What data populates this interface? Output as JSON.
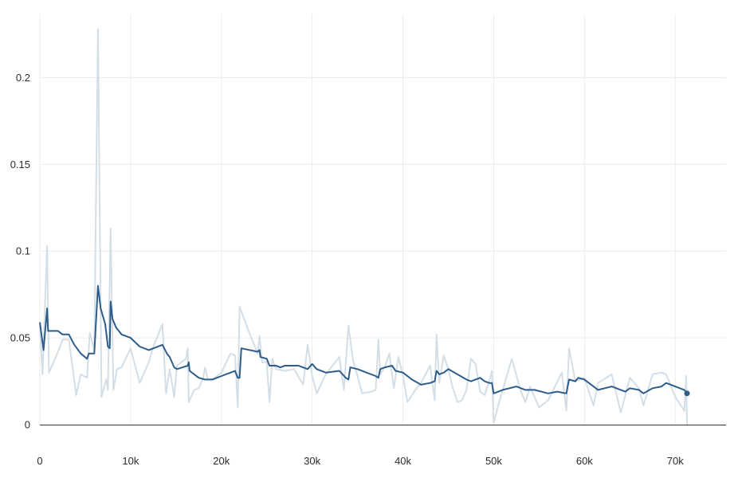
{
  "chart_data": {
    "type": "line",
    "title": "",
    "xlabel": "",
    "ylabel": "",
    "xlim": [
      0,
      75600
    ],
    "ylim": [
      0,
      0.2365
    ],
    "x_ticks": [
      0,
      10000,
      20000,
      30000,
      40000,
      50000,
      60000,
      70000
    ],
    "x_tick_labels": [
      "0",
      "10k",
      "20k",
      "30k",
      "40k",
      "50k",
      "60k",
      "70k"
    ],
    "y_ticks": [
      0,
      0.05,
      0.1,
      0.15,
      0.2
    ],
    "y_tick_labels": [
      "0",
      "0.05",
      "0.1",
      "0.15",
      "0.2"
    ],
    "grid": true,
    "legend": "none",
    "colors": {
      "raw": "#d3dee7",
      "smoothed": "#2e5d8a",
      "grid": "#ececec",
      "axis": "#333333"
    },
    "series": [
      {
        "key": "raw",
        "values": [
          [
            0,
            0.057
          ],
          [
            300,
            0.029
          ],
          [
            800,
            0.103
          ],
          [
            1000,
            0.03
          ],
          [
            2000,
            0.042
          ],
          [
            2500,
            0.049
          ],
          [
            3200,
            0.049
          ],
          [
            4000,
            0.017
          ],
          [
            4500,
            0.029
          ],
          [
            5200,
            0.027
          ],
          [
            5500,
            0.053
          ],
          [
            6000,
            0.043
          ],
          [
            6400,
            0.228
          ],
          [
            6800,
            0.016
          ],
          [
            7300,
            0.026
          ],
          [
            7500,
            0.02
          ],
          [
            7800,
            0.113
          ],
          [
            8100,
            0.02
          ],
          [
            8500,
            0.032
          ],
          [
            9000,
            0.033
          ],
          [
            10000,
            0.044
          ],
          [
            11000,
            0.024
          ],
          [
            12000,
            0.036
          ],
          [
            12500,
            0.045
          ],
          [
            13500,
            0.058
          ],
          [
            13900,
            0.018
          ],
          [
            14300,
            0.032
          ],
          [
            14800,
            0.016
          ],
          [
            15100,
            0.034
          ],
          [
            16100,
            0.038
          ],
          [
            16300,
            0.044
          ],
          [
            16400,
            0.013
          ],
          [
            17000,
            0.02
          ],
          [
            17500,
            0.021
          ],
          [
            18000,
            0.027
          ],
          [
            18200,
            0.033
          ],
          [
            18500,
            0.026
          ],
          [
            19000,
            0.026
          ],
          [
            20000,
            0.03
          ],
          [
            21000,
            0.041
          ],
          [
            21500,
            0.04
          ],
          [
            21800,
            0.01
          ],
          [
            22000,
            0.068
          ],
          [
            23000,
            0.054
          ],
          [
            24000,
            0.041
          ],
          [
            24200,
            0.051
          ],
          [
            24500,
            0.036
          ],
          [
            25000,
            0.036
          ],
          [
            25300,
            0.013
          ],
          [
            25600,
            0.038
          ],
          [
            26000,
            0.032
          ],
          [
            27000,
            0.031
          ],
          [
            28000,
            0.032
          ],
          [
            29000,
            0.023
          ],
          [
            29500,
            0.046
          ],
          [
            30000,
            0.028
          ],
          [
            30500,
            0.018
          ],
          [
            31500,
            0.029
          ],
          [
            33000,
            0.039
          ],
          [
            33500,
            0.02
          ],
          [
            34000,
            0.057
          ],
          [
            34500,
            0.037
          ],
          [
            35000,
            0.028
          ],
          [
            35500,
            0.018
          ],
          [
            36500,
            0.019
          ],
          [
            37000,
            0.02
          ],
          [
            37300,
            0.049
          ],
          [
            37500,
            0.029
          ],
          [
            38000,
            0.033
          ],
          [
            38500,
            0.041
          ],
          [
            39000,
            0.021
          ],
          [
            39500,
            0.039
          ],
          [
            40000,
            0.028
          ],
          [
            40500,
            0.013
          ],
          [
            41000,
            0.017
          ],
          [
            41500,
            0.021
          ],
          [
            42000,
            0.024
          ],
          [
            43000,
            0.034
          ],
          [
            43500,
            0.014
          ],
          [
            43700,
            0.052
          ],
          [
            44000,
            0.024
          ],
          [
            44500,
            0.04
          ],
          [
            45000,
            0.032
          ],
          [
            45500,
            0.021
          ],
          [
            46000,
            0.013
          ],
          [
            46500,
            0.014
          ],
          [
            47000,
            0.02
          ],
          [
            47500,
            0.038
          ],
          [
            48000,
            0.035
          ],
          [
            48500,
            0.019
          ],
          [
            49000,
            0.017
          ],
          [
            49500,
            0.025
          ],
          [
            49800,
            0.031
          ],
          [
            50000,
            0.001
          ],
          [
            50500,
            0.011
          ],
          [
            52000,
            0.038
          ],
          [
            53000,
            0.019
          ],
          [
            53500,
            0.013
          ],
          [
            54000,
            0.022
          ],
          [
            55000,
            0.01
          ],
          [
            56000,
            0.014
          ],
          [
            57500,
            0.03
          ],
          [
            58000,
            0.008
          ],
          [
            58300,
            0.044
          ],
          [
            59000,
            0.025
          ],
          [
            60000,
            0.027
          ],
          [
            61000,
            0.011
          ],
          [
            61500,
            0.024
          ],
          [
            63000,
            0.029
          ],
          [
            64000,
            0.007
          ],
          [
            65000,
            0.027
          ],
          [
            66000,
            0.021
          ],
          [
            66500,
            0.011
          ],
          [
            67500,
            0.029
          ],
          [
            68500,
            0.03
          ],
          [
            69000,
            0.029
          ],
          [
            70000,
            0.016
          ],
          [
            71000,
            0.008
          ],
          [
            71200,
            0.028
          ],
          [
            71300,
            0.0
          ]
        ]
      },
      {
        "key": "smoothed",
        "values": [
          [
            0,
            0.059
          ],
          [
            400,
            0.043
          ],
          [
            800,
            0.067
          ],
          [
            900,
            0.054
          ],
          [
            2000,
            0.054
          ],
          [
            2500,
            0.052
          ],
          [
            3200,
            0.052
          ],
          [
            3800,
            0.046
          ],
          [
            4500,
            0.041
          ],
          [
            5200,
            0.038
          ],
          [
            5400,
            0.041
          ],
          [
            6000,
            0.041
          ],
          [
            6400,
            0.08
          ],
          [
            6700,
            0.067
          ],
          [
            7200,
            0.058
          ],
          [
            7500,
            0.045
          ],
          [
            7700,
            0.044
          ],
          [
            7800,
            0.071
          ],
          [
            8000,
            0.061
          ],
          [
            8400,
            0.056
          ],
          [
            9000,
            0.052
          ],
          [
            10000,
            0.05
          ],
          [
            11000,
            0.045
          ],
          [
            12000,
            0.043
          ],
          [
            13500,
            0.046
          ],
          [
            14000,
            0.041
          ],
          [
            14300,
            0.039
          ],
          [
            14800,
            0.033
          ],
          [
            15100,
            0.032
          ],
          [
            16300,
            0.034
          ],
          [
            16400,
            0.036
          ],
          [
            16500,
            0.031
          ],
          [
            17000,
            0.029
          ],
          [
            17500,
            0.027
          ],
          [
            18200,
            0.026
          ],
          [
            19000,
            0.026
          ],
          [
            20000,
            0.028
          ],
          [
            21000,
            0.03
          ],
          [
            21500,
            0.031
          ],
          [
            21800,
            0.027
          ],
          [
            22000,
            0.027
          ],
          [
            22200,
            0.044
          ],
          [
            24000,
            0.042
          ],
          [
            24200,
            0.043
          ],
          [
            24300,
            0.039
          ],
          [
            25000,
            0.038
          ],
          [
            25300,
            0.034
          ],
          [
            26000,
            0.034
          ],
          [
            26500,
            0.033
          ],
          [
            27000,
            0.034
          ],
          [
            28500,
            0.034
          ],
          [
            29500,
            0.032
          ],
          [
            30000,
            0.035
          ],
          [
            30500,
            0.032
          ],
          [
            31500,
            0.03
          ],
          [
            33000,
            0.031
          ],
          [
            33700,
            0.027
          ],
          [
            34000,
            0.026
          ],
          [
            34200,
            0.033
          ],
          [
            35000,
            0.032
          ],
          [
            36000,
            0.03
          ],
          [
            37000,
            0.028
          ],
          [
            37300,
            0.027
          ],
          [
            37500,
            0.032
          ],
          [
            38000,
            0.033
          ],
          [
            38800,
            0.034
          ],
          [
            39200,
            0.031
          ],
          [
            40000,
            0.03
          ],
          [
            41000,
            0.026
          ],
          [
            42000,
            0.023
          ],
          [
            43000,
            0.024
          ],
          [
            43500,
            0.025
          ],
          [
            43700,
            0.031
          ],
          [
            44000,
            0.029
          ],
          [
            44500,
            0.03
          ],
          [
            45000,
            0.032
          ],
          [
            46000,
            0.029
          ],
          [
            47000,
            0.026
          ],
          [
            47500,
            0.025
          ],
          [
            48000,
            0.026
          ],
          [
            48500,
            0.027
          ],
          [
            49000,
            0.025
          ],
          [
            49500,
            0.024
          ],
          [
            49800,
            0.024
          ],
          [
            50000,
            0.018
          ],
          [
            51000,
            0.02
          ],
          [
            52500,
            0.022
          ],
          [
            53500,
            0.02
          ],
          [
            54500,
            0.02
          ],
          [
            56000,
            0.018
          ],
          [
            57000,
            0.019
          ],
          [
            58000,
            0.018
          ],
          [
            58300,
            0.026
          ],
          [
            59000,
            0.025
          ],
          [
            59300,
            0.027
          ],
          [
            60000,
            0.026
          ],
          [
            61000,
            0.022
          ],
          [
            61500,
            0.02
          ],
          [
            63000,
            0.022
          ],
          [
            64000,
            0.02
          ],
          [
            64500,
            0.019
          ],
          [
            65000,
            0.021
          ],
          [
            66000,
            0.02
          ],
          [
            66500,
            0.018
          ],
          [
            67500,
            0.021
          ],
          [
            68500,
            0.022
          ],
          [
            69000,
            0.024
          ],
          [
            70000,
            0.022
          ],
          [
            71000,
            0.02
          ],
          [
            71300,
            0.018
          ]
        ]
      }
    ]
  }
}
